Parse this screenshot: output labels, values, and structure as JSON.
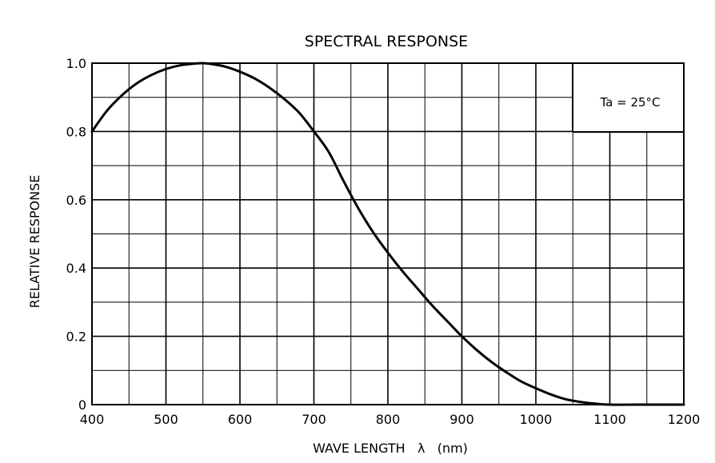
{
  "chart_data": {
    "type": "line",
    "title": "SPECTRAL RESPONSE",
    "xlabel": "WAVE LENGTH   λ   (nm)",
    "ylabel": "RELATIVE RESPONSE",
    "xlim": [
      400,
      1200
    ],
    "ylim": [
      0,
      1.0
    ],
    "x_ticks": [
      400,
      500,
      600,
      700,
      800,
      900,
      1000,
      1100,
      1200
    ],
    "x_tick_labels": [
      "400",
      "500",
      "600",
      "700",
      "800",
      "900",
      "1000",
      "1100",
      "1200"
    ],
    "y_ticks": [
      0,
      0.2,
      0.4,
      0.6,
      0.8,
      1.0
    ],
    "y_tick_labels": [
      "0",
      "0.2",
      "0.4",
      "0.6",
      "0.8",
      "1.0"
    ],
    "grid": true,
    "annotation": "Ta = 25°C",
    "series": [
      {
        "name": "Relative response",
        "x": [
          400,
          420,
          440,
          460,
          480,
          500,
          520,
          540,
          550,
          560,
          580,
          600,
          620,
          640,
          660,
          680,
          700,
          720,
          740,
          760,
          780,
          800,
          820,
          840,
          860,
          880,
          900,
          920,
          940,
          960,
          980,
          1000,
          1020,
          1040,
          1060,
          1080,
          1100,
          1150,
          1200
        ],
        "values": [
          0.8,
          0.86,
          0.905,
          0.94,
          0.965,
          0.983,
          0.994,
          0.999,
          1.0,
          0.998,
          0.99,
          0.975,
          0.955,
          0.928,
          0.895,
          0.855,
          0.8,
          0.74,
          0.655,
          0.575,
          0.505,
          0.445,
          0.39,
          0.34,
          0.29,
          0.245,
          0.2,
          0.16,
          0.125,
          0.095,
          0.068,
          0.048,
          0.03,
          0.016,
          0.008,
          0.003,
          0.0,
          0.0,
          0.0
        ]
      }
    ]
  }
}
